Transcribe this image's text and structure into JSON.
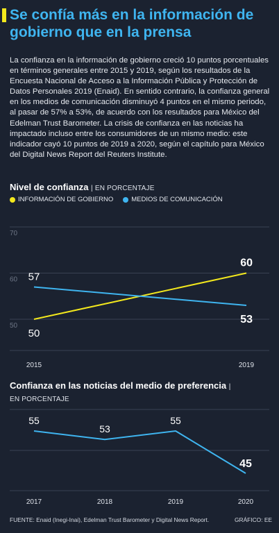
{
  "header": {
    "title": "Se confía más en la información de gobierno que en la prensa"
  },
  "intro": "La confianza en la información de gobierno creció 10 puntos porcentuales en términos generales entre 2015 y 2019, según los resultados de la Encuesta Nacional de Acceso a la Información Pública y Protección de Datos Personales 2019 (Enaid). En sentido contrario, la confianza general en los medios de comunicación disminuyó 4 puntos en el mismo periodo, al pasar de 57% a 53%, de acuerdo con los resultados para México del Edelman Trust Barometer. La crisis de confianza en las noticias ha impactado incluso entre los consumidores de un mismo medio: este indicador cayó 10 puntos de 2019 a 2020, según el capítulo para México del Digital News Report del Reuters Institute.",
  "colors": {
    "government": "#f3e81d",
    "media": "#3fb5f0",
    "grid": "#3a4253"
  },
  "chart_data": [
    {
      "type": "line",
      "title": "Nivel de confianza",
      "unit_label": "| EN PORCENTAJE",
      "x": [
        "2015",
        "2019"
      ],
      "series": [
        {
          "name": "INFORMACIÓN DE GOBIERNO",
          "values": [
            50,
            60
          ],
          "labels": [
            "50",
            "60"
          ],
          "color": "#f3e81d"
        },
        {
          "name": "MEDIOS DE COMUNICACIÓN",
          "values": [
            57,
            53
          ],
          "labels": [
            "57",
            "53"
          ],
          "color": "#3fb5f0"
        }
      ],
      "y_ticks": [
        "70",
        "60",
        "50"
      ],
      "ylim": [
        45,
        70
      ],
      "grid": true,
      "legend": "top-left"
    },
    {
      "type": "line",
      "title": "Confianza en las noticias del medio de preferencia",
      "unit_label": "EN PORCENTAJE",
      "title_suffix": "|",
      "x": [
        "2017",
        "2018",
        "2019",
        "2020"
      ],
      "series": [
        {
          "values": [
            55,
            53,
            55,
            45
          ],
          "labels": [
            "55",
            "53",
            "55",
            "45"
          ],
          "color": "#3fb5f0"
        }
      ],
      "ylim": [
        42,
        60
      ],
      "grid": true
    }
  ],
  "footer": {
    "source": "FUENTE: Enaid (Inegi-Inai), Edelman Trust Barometer y Digital News Report.",
    "credit": "GRÁFICO: EE"
  }
}
